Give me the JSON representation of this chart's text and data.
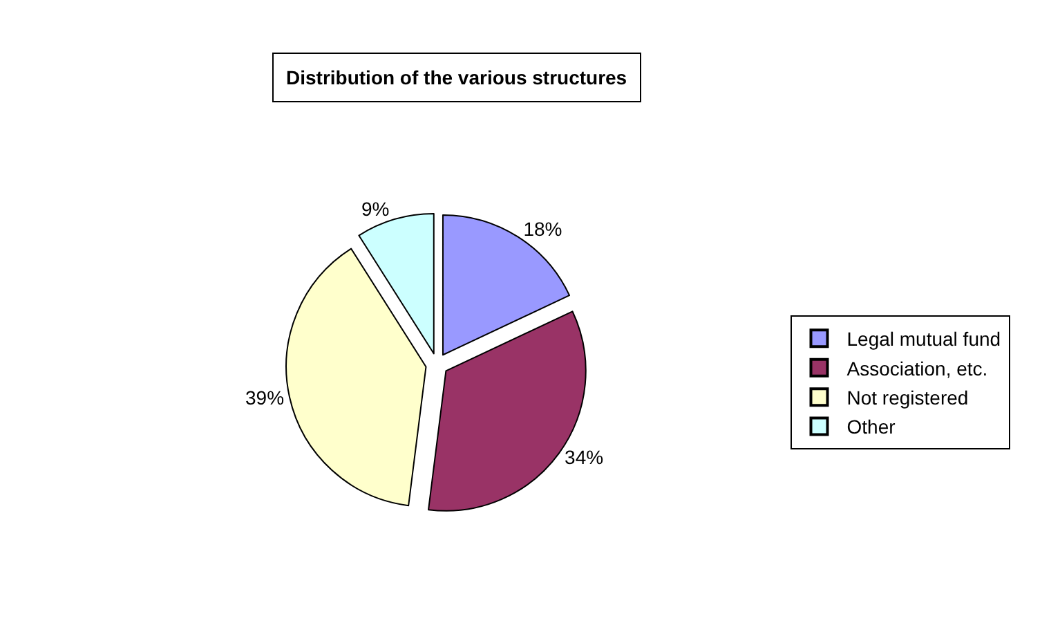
{
  "chart_data": {
    "type": "pie",
    "title": "Distribution of the various structures",
    "categories": [
      "Legal mutual fund",
      "Association, etc.",
      "Not registered",
      "Other"
    ],
    "values": [
      18,
      34,
      39,
      9
    ],
    "value_labels": [
      "18%",
      "34%",
      "39%",
      "9%"
    ],
    "colors": [
      "#9999ff",
      "#993366",
      "#ffffcc",
      "#ccffff"
    ],
    "legend": "right"
  }
}
